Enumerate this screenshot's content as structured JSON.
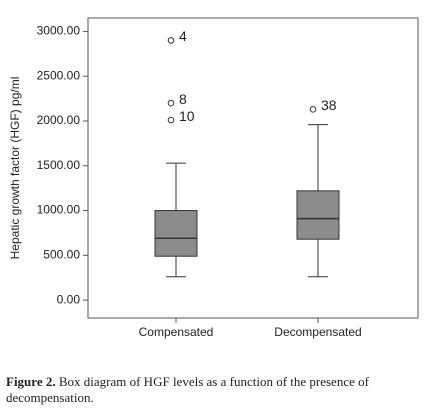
{
  "chart_data": {
    "type": "box",
    "y_label": "Hepatic growth factor (HGF) pg/ml",
    "categories": [
      "Compensated",
      "Decompensated"
    ],
    "color": "#8c8c8c",
    "boxes": [
      {
        "whisker_low": 260,
        "q1": 490,
        "median": 690,
        "q3": 1000,
        "whisker_high": 1530,
        "outliers": [
          {
            "value": 2900,
            "label": "4"
          },
          {
            "value": 2200,
            "label": "8"
          },
          {
            "value": 2010,
            "label": "10"
          }
        ]
      },
      {
        "whisker_low": 260,
        "q1": 680,
        "median": 910,
        "q3": 1220,
        "whisker_high": 1960,
        "outliers": [
          {
            "value": 2130,
            "label": "38"
          }
        ]
      }
    ],
    "ylim": [
      -200,
      3150
    ],
    "yticks": [
      {
        "value": 0,
        "label": "0.00"
      },
      {
        "value": 500,
        "label": "500.00"
      },
      {
        "value": 1000,
        "label": "1000.00"
      },
      {
        "value": 1500,
        "label": "1500.00"
      },
      {
        "value": 2000,
        "label": "2000.00"
      },
      {
        "value": 2500,
        "label": "2500.00"
      },
      {
        "value": 3000,
        "label": "3000.00"
      }
    ]
  },
  "caption": {
    "label": "Figure 2.",
    "text": "Box diagram of HGF levels as a function of the presence of decompensation."
  }
}
